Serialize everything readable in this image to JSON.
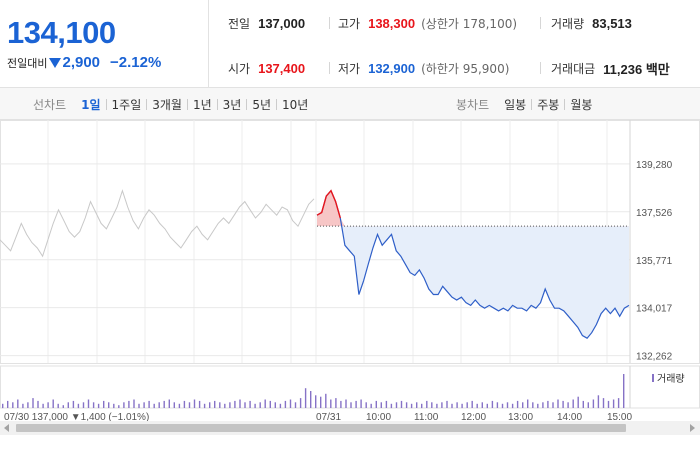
{
  "summary": {
    "price": "134,100",
    "change_label": "전일대비",
    "change_value": "2,900",
    "change_pct": "−2.12%",
    "prev_close_label": "전일",
    "prev_close": "137,000",
    "high_label": "고가",
    "high": "138,300",
    "upper_limit": "(상한가 178,100)",
    "volume_label": "거래량",
    "volume": "83,513",
    "open_label": "시가",
    "open": "137,400",
    "low_label": "저가",
    "low": "132,900",
    "lower_limit": "(하한가 95,900)",
    "amount_label": "거래대금",
    "amount": "11,236 백만"
  },
  "tabs": {
    "line_title": "선차트",
    "line_items": [
      "1일",
      "1주일",
      "3개월",
      "1년",
      "3년",
      "5년",
      "10년"
    ],
    "line_active": 0,
    "candle_title": "봉차트",
    "candle_items": [
      "일봉",
      "주봉",
      "월봉"
    ]
  },
  "colors": {
    "up": "#e8151b",
    "down": "#1b63d4",
    "line": "#2f5fc8",
    "fill": "#e6eefa",
    "prev_line": "#c8c8c8",
    "volume": "#8672c6"
  },
  "icons": {
    "change_direction": "down-triangle-icon"
  },
  "chart_data": {
    "type": "line",
    "y_ticks": [
      "139,280",
      "137,526",
      "135,771",
      "134,017",
      "132,262"
    ],
    "y_tick_values": [
      139280,
      137526,
      135771,
      134017,
      132262
    ],
    "ylim": [
      131700,
      140300
    ],
    "prev_close": 137000,
    "volume_legend": "거래량",
    "x_labels": [
      "07/30 137,000 ▼1,400 (−1.01%)",
      "07/31",
      "10:00",
      "11:00",
      "12:00",
      "13:00",
      "14:00",
      "15:00"
    ],
    "previous_day_values": [
      136500,
      136300,
      136100,
      136600,
      137100,
      136700,
      136400,
      136200,
      135900,
      136500,
      137100,
      137600,
      137200,
      136800,
      136600,
      136800,
      137300,
      137900,
      137500,
      137100,
      136900,
      137300,
      137700,
      138300,
      137700,
      137200,
      136900,
      137300,
      137600,
      137400,
      137100,
      136900,
      136600,
      136400,
      136200,
      136500,
      136800,
      137000,
      136700,
      136500,
      136800,
      137100,
      137300,
      137100,
      137400,
      137700,
      137900,
      137600,
      137300,
      137500,
      137800,
      137600,
      137400,
      137700,
      137600,
      137200,
      137000,
      137400,
      137800,
      138000
    ],
    "today_values": [
      137400,
      137500,
      138100,
      138300,
      137900,
      137300,
      136300,
      136100,
      135900,
      134500,
      135000,
      135600,
      136200,
      136700,
      136300,
      136500,
      136700,
      136100,
      135900,
      135600,
      135300,
      135200,
      135400,
      135100,
      134700,
      134500,
      134500,
      134800,
      134600,
      134400,
      134300,
      134400,
      134200,
      134100,
      134300,
      134100,
      134000,
      134100,
      134000,
      133900,
      134000,
      133900,
      134100,
      134000,
      134000,
      133900,
      134100,
      134000,
      134200,
      134700,
      134300,
      134000,
      134000,
      133900,
      133700,
      133500,
      133300,
      133000,
      132900,
      133100,
      133400,
      133800,
      134000,
      133800,
      134000,
      133700,
      134000,
      134100
    ],
    "volume_values": [
      3,
      5,
      4,
      6,
      3,
      4,
      7,
      5,
      3,
      4,
      6,
      3,
      2,
      4,
      5,
      3,
      4,
      6,
      4,
      3,
      5,
      4,
      3,
      2,
      4,
      5,
      6,
      3,
      4,
      5,
      3,
      4,
      5,
      6,
      4,
      3,
      5,
      4,
      6,
      5,
      3,
      4,
      5,
      4,
      3,
      4,
      5,
      6,
      4,
      5,
      3,
      4,
      6,
      5,
      4,
      3,
      5,
      6,
      4,
      7,
      14,
      12,
      9,
      8,
      10,
      6,
      7,
      5,
      6,
      4,
      5,
      6,
      4,
      3,
      5,
      4,
      5,
      3,
      4,
      5,
      4,
      3,
      4,
      3,
      5,
      4,
      3,
      4,
      5,
      3,
      4,
      3,
      4,
      5,
      3,
      4,
      3,
      5,
      4,
      3,
      4,
      3,
      5,
      4,
      6,
      4,
      3,
      4,
      5,
      4,
      6,
      5,
      4,
      6,
      8,
      5,
      4,
      6,
      9,
      7,
      5,
      6,
      7,
      24
    ]
  }
}
